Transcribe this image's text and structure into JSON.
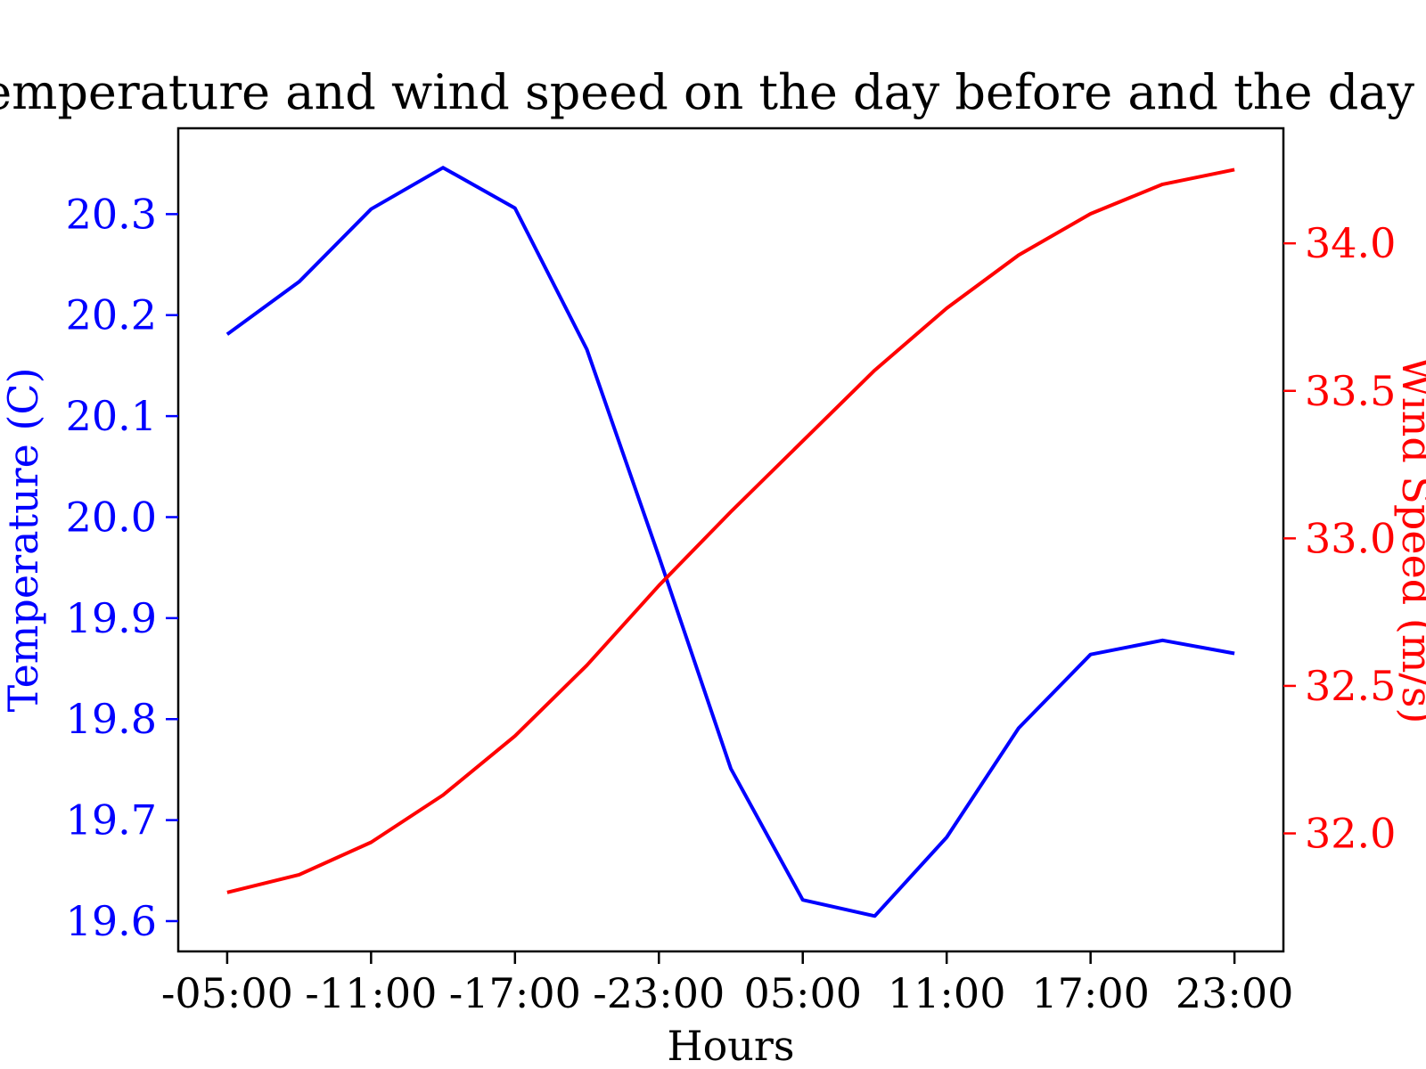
{
  "chart_data": {
    "type": "line",
    "title": "Temperature and wind speed on the day before and the day of",
    "xlabel": "Hours",
    "ylabel_left": "Temperature (C)",
    "ylabel_right": "Wind Speed (m/s)",
    "x_tick_labels": [
      "-05:00",
      "-11:00",
      "-17:00",
      "-23:00",
      "05:00",
      "11:00",
      "17:00",
      "23:00"
    ],
    "y_left_ticks": [
      19.6,
      19.7,
      19.8,
      19.9,
      20.0,
      20.1,
      20.2,
      20.3
    ],
    "y_left_tick_labels": [
      "19.6",
      "19.7",
      "19.8",
      "19.9",
      "20.0",
      "20.1",
      "20.2",
      "20.3"
    ],
    "y_right_ticks": [
      32.0,
      32.5,
      33.0,
      33.5,
      34.0
    ],
    "y_right_tick_labels": [
      "32.0",
      "32.5",
      "33.0",
      "33.5",
      "34.0"
    ],
    "y_left_range": [
      19.57,
      20.385
    ],
    "y_right_range": [
      31.6,
      34.39
    ],
    "x_range": [
      -0.68,
      14.68
    ],
    "grid": false,
    "colors": {
      "temperature": "#0000ff",
      "wind": "#ff0000"
    },
    "series": [
      {
        "axis": "left",
        "color": "#0000ff",
        "values": [
          20.181,
          20.233,
          20.305,
          20.346,
          20.306,
          20.166,
          19.961,
          19.751,
          19.621,
          19.605,
          19.683,
          19.791,
          19.864,
          19.878,
          19.865
        ]
      },
      {
        "axis": "right",
        "color": "#ff0000",
        "values": [
          31.8,
          31.86,
          31.97,
          32.13,
          32.33,
          32.57,
          32.84,
          33.09,
          33.33,
          33.57,
          33.78,
          33.96,
          34.1,
          34.2,
          34.25
        ]
      }
    ]
  }
}
